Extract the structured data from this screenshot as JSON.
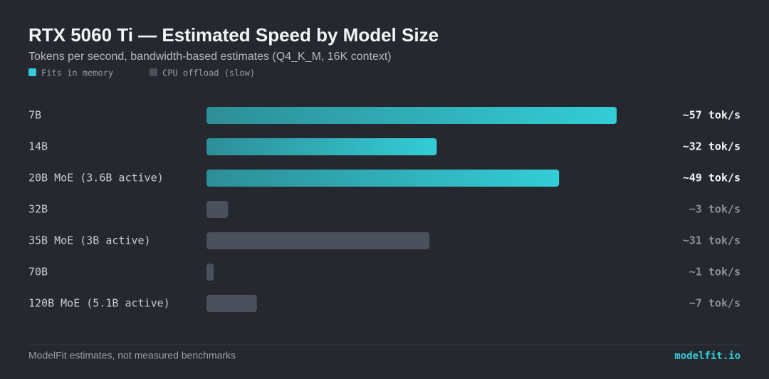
{
  "chart_data": {
    "type": "bar",
    "orientation": "horizontal",
    "title": "RTX 5060 Ti — Estimated Speed by Model Size",
    "subtitle": "Tokens per second, bandwidth-based estimates (Q4_K_M, 16K context)",
    "categories": [
      "7B",
      "14B",
      "20B MoE (3.6B active)",
      "32B",
      "35B MoE (3B active)",
      "70B",
      "120B MoE (5.1B active)"
    ],
    "series": [
      {
        "name": "Fits in memory",
        "color": "#33cdd7",
        "values": [
          57,
          32,
          49,
          null,
          null,
          null,
          null
        ],
        "value_labels": [
          "~57 tok/s",
          "~32 tok/s",
          "~49 tok/s",
          null,
          null,
          null,
          null
        ]
      },
      {
        "name": "CPU offload (slow)",
        "color": "#4b515c",
        "values": [
          null,
          null,
          null,
          3,
          31,
          1,
          7
        ],
        "value_labels": [
          null,
          null,
          null,
          "~3 tok/s",
          "~31 tok/s",
          "~1 tok/s",
          "~7 tok/s"
        ]
      }
    ],
    "footer": "ModelFit estimates, not measured benchmarks",
    "source": "modelfit.io"
  }
}
